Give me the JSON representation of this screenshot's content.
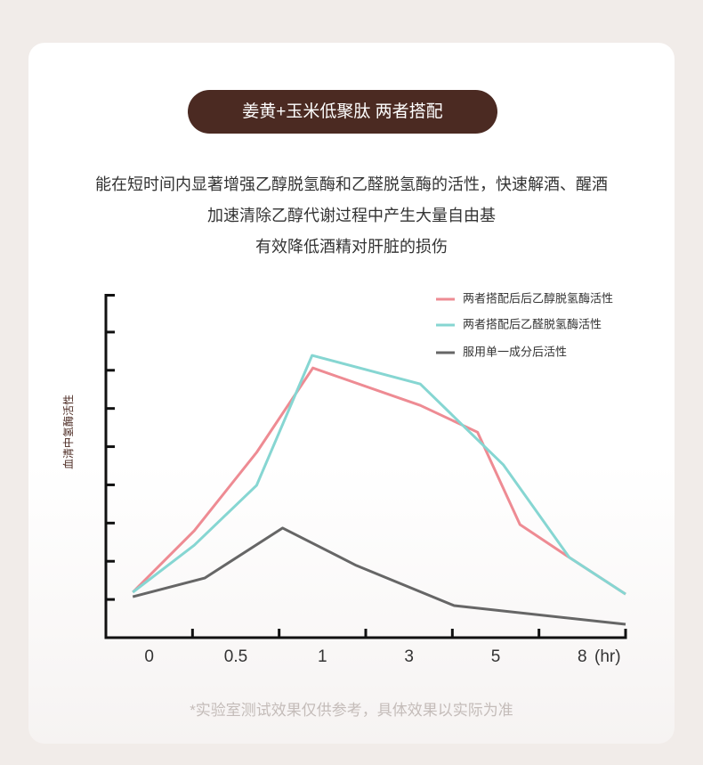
{
  "header": {
    "title": "姜黄+玉米低聚肽 两者搭配"
  },
  "description": [
    "能在短时间内显著增强乙醇脱氢酶和乙醛脱氢酶的活性，快速解酒、醒酒",
    "加速清除乙醇代谢过程中产生大量自由基",
    "有效降低酒精对肝脏的损伤"
  ],
  "chart_data": {
    "type": "line",
    "y_label": "血清中氢酶活性",
    "categories": [
      "0",
      "0.5",
      "1",
      "3",
      "5",
      "8"
    ],
    "x_unit": "(hr)",
    "xlim": [
      0,
      6
    ],
    "ylim": [
      0,
      9
    ],
    "yticks": [
      1,
      2,
      3,
      4,
      5,
      6,
      7,
      8
    ],
    "legend": "top-right",
    "series": [
      {
        "name": "两者搭配后后乙醇脱氢酶活性",
        "color": "#ee8b93",
        "x": [
          0.31,
          1.02,
          1.74,
          2.39,
          3.63,
          4.29,
          4.78,
          5.35,
          6.0
        ],
        "values": [
          1.19,
          2.8,
          4.85,
          7.06,
          6.08,
          5.38,
          2.96,
          2.1,
          1.14
        ]
      },
      {
        "name": "两者搭配后乙醛脱氢酶活性",
        "color": "#86d6d2",
        "x": [
          0.31,
          1.02,
          1.74,
          2.38,
          3.63,
          4.59,
          5.35,
          6.0
        ],
        "values": [
          1.19,
          2.42,
          3.99,
          7.39,
          6.64,
          4.52,
          2.1,
          1.14
        ]
      },
      {
        "name": "服用单一成分后活性",
        "color": "#666666",
        "x": [
          0.31,
          1.14,
          2.04,
          2.89,
          4.02,
          6.0
        ],
        "values": [
          1.07,
          1.56,
          2.87,
          1.89,
          0.84,
          0.35
        ]
      }
    ]
  },
  "footnote": "*实验室测试效果仅供参考，具体效果以实际为准"
}
